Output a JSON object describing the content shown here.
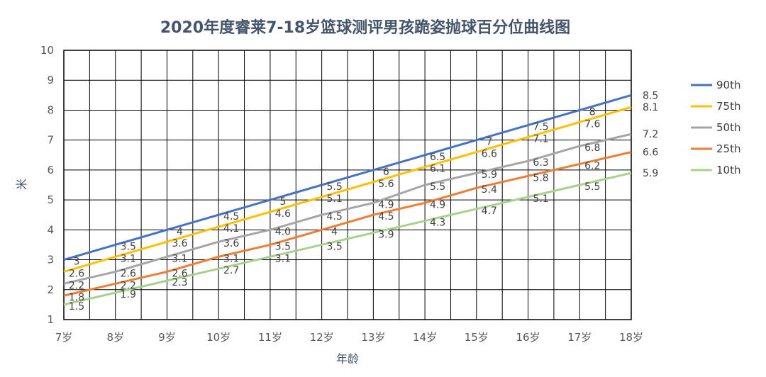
{
  "chart_data": {
    "type": "line",
    "title": "2020年度睿莱7-18岁篮球测评男孩跪姿抛球百分位曲线图",
    "xlabel": "年龄",
    "ylabel": "米",
    "categories": [
      "7岁",
      "8岁",
      "9岁",
      "10岁",
      "11岁",
      "12岁",
      "13岁",
      "14岁",
      "15岁",
      "16岁",
      "17岁",
      "18岁"
    ],
    "x": [
      7,
      8,
      9,
      10,
      11,
      12,
      13,
      14,
      15,
      16,
      17,
      18
    ],
    "ylim": [
      1,
      10
    ],
    "yticks": [
      "1",
      "2",
      "3",
      "4",
      "5",
      "6",
      "7",
      "8",
      "9",
      "10"
    ],
    "grid": true,
    "legend_position": "right",
    "series": [
      {
        "name": "90th",
        "color": "#4472c4",
        "values": [
          3,
          3.5,
          4,
          4.5,
          5,
          5.5,
          6,
          6.5,
          7,
          7.5,
          8,
          8.5
        ],
        "labels": [
          "3",
          "3.5",
          "4",
          "4.5",
          "5",
          "5.5",
          "6",
          "6.5",
          "7",
          "7.5",
          "8",
          "8.5"
        ]
      },
      {
        "name": "75th",
        "color": "#ffc000",
        "values": [
          2.6,
          3.1,
          3.6,
          4.1,
          4.6,
          5.1,
          5.6,
          6.1,
          6.6,
          7.1,
          7.6,
          8.1
        ],
        "labels": [
          "2.6",
          "3.1",
          "3.6",
          "4.1",
          "4.6",
          "5.1",
          "5.6",
          "6.1",
          "6.6",
          "7.1",
          "7.6",
          "8.1"
        ]
      },
      {
        "name": "50th",
        "color": "#a5a5a5",
        "values": [
          2.2,
          2.6,
          3.1,
          3.6,
          4.0,
          4.5,
          4.9,
          5.5,
          5.9,
          6.3,
          6.8,
          7.2
        ],
        "labels": [
          "2.2",
          "2.6",
          "3.1",
          "3.6",
          "4.0",
          "4.5",
          "4.9",
          "5.5",
          "5.9",
          "6.3",
          "6.8",
          "7.2"
        ]
      },
      {
        "name": "25th",
        "color": "#ed7d31",
        "values": [
          1.8,
          2.2,
          2.6,
          3.1,
          3.5,
          4,
          4.5,
          4.9,
          5.4,
          5.8,
          6.2,
          6.6
        ],
        "labels": [
          "1.8",
          "2.2",
          "2.6",
          "3.1",
          "3.5",
          "4",
          "4.5",
          "4.9",
          "5.4",
          "5.8",
          "6.2",
          "6.6"
        ]
      },
      {
        "name": "10th",
        "color": "#a9d18e",
        "values": [
          1.5,
          1.9,
          2.3,
          2.7,
          3.1,
          3.5,
          3.9,
          4.3,
          4.7,
          5.1,
          5.5,
          5.9
        ],
        "labels": [
          "1.5",
          "1.9",
          "2.3",
          "2.7",
          "3.1",
          "3.5",
          "3.9",
          "4.3",
          "4.7",
          "5.1",
          "5.5",
          "5.9"
        ]
      }
    ]
  }
}
